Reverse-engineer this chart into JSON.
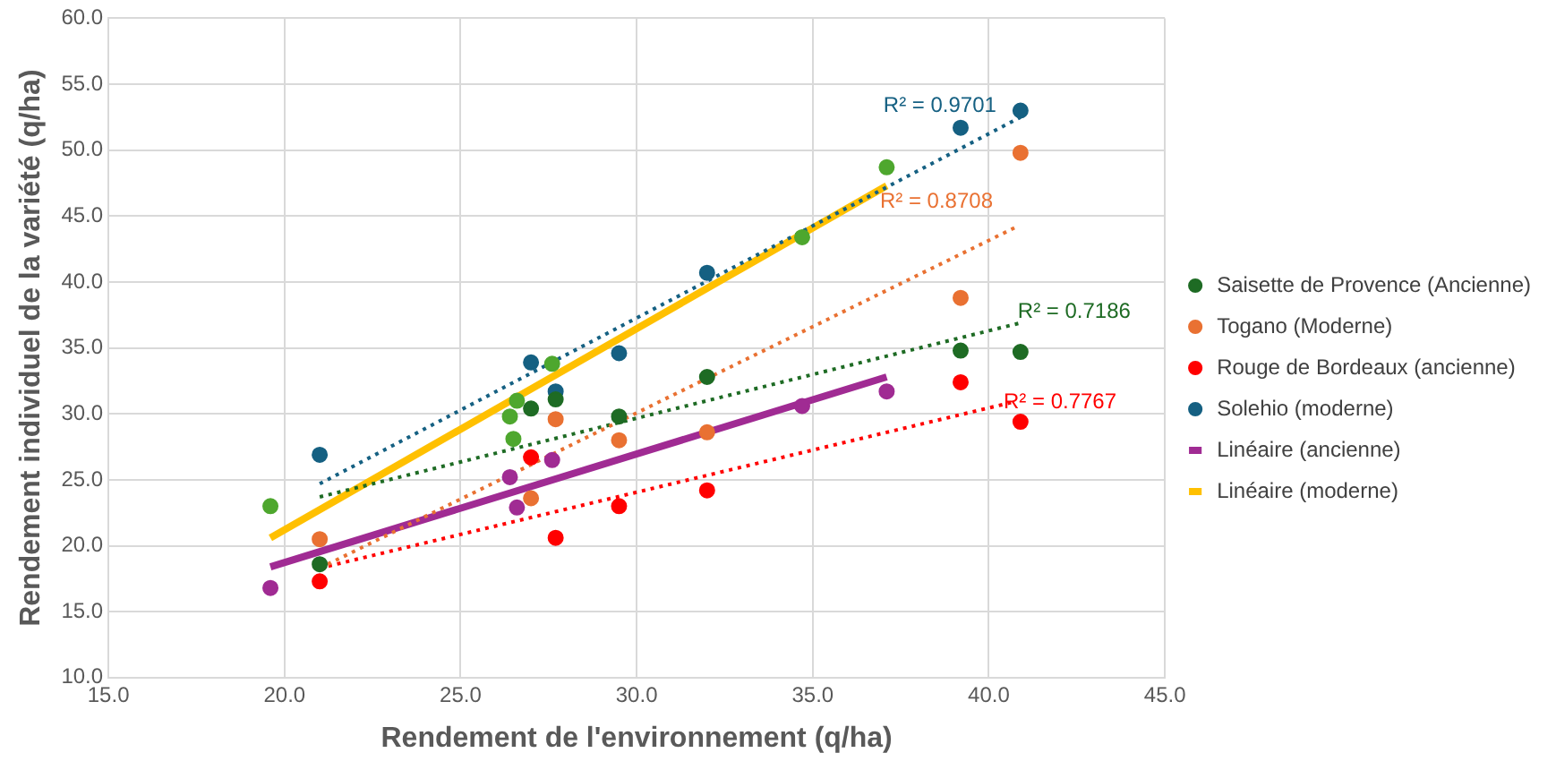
{
  "chart_data": {
    "type": "scatter",
    "xlabel": "Rendement de l'environnement (q/ha)",
    "ylabel": "Rendement individuel de la variété (q/ha)",
    "xlim": [
      15,
      45
    ],
    "ylim": [
      10,
      60
    ],
    "xticks": [
      {
        "value": 15,
        "label": "15.0"
      },
      {
        "value": 20,
        "label": "20.0"
      },
      {
        "value": 25,
        "label": "25.0"
      },
      {
        "value": 30,
        "label": "30.0"
      },
      {
        "value": 35,
        "label": "35.0"
      },
      {
        "value": 40,
        "label": "40.0"
      },
      {
        "value": 45,
        "label": "45.0"
      }
    ],
    "yticks": [
      {
        "value": 10,
        "label": "10.0"
      },
      {
        "value": 15,
        "label": "15.0"
      },
      {
        "value": 20,
        "label": "20.0"
      },
      {
        "value": 25,
        "label": "25.0"
      },
      {
        "value": 30,
        "label": "30.0"
      },
      {
        "value": 35,
        "label": "35.0"
      },
      {
        "value": 40,
        "label": "40.0"
      },
      {
        "value": 45,
        "label": "45.0"
      },
      {
        "value": 50,
        "label": "50.0"
      },
      {
        "value": 55,
        "label": "55.0"
      },
      {
        "value": 60,
        "label": "60.0"
      }
    ],
    "grid": true,
    "legend": "right",
    "marker": "circle",
    "series": [
      {
        "type": "line",
        "line_style": "dotted",
        "marker": "none",
        "color": "#156082",
        "x": [
          21.0,
          40.9
        ],
        "values": [
          24.7,
          52.5
        ]
      },
      {
        "type": "line",
        "line_style": "dotted",
        "marker": "none",
        "color": "#e97132",
        "x": [
          21.0,
          40.8
        ],
        "values": [
          18.3,
          44.2
        ]
      },
      {
        "type": "line",
        "line_style": "dotted",
        "marker": "none",
        "color": "#1e6b24",
        "x": [
          21.0,
          40.9
        ],
        "values": [
          23.7,
          36.9
        ]
      },
      {
        "type": "line",
        "line_style": "dotted",
        "marker": "none",
        "color": "#ff0000",
        "x": [
          21.0,
          40.7
        ],
        "values": [
          18.3,
          30.9
        ]
      },
      {
        "type": "line",
        "line_style": "solid",
        "marker": "none",
        "name": "Linéaire (ancienne)",
        "color": "#a02b93",
        "x": [
          19.6,
          37.1
        ],
        "values": [
          18.4,
          32.8
        ]
      },
      {
        "type": "line",
        "line_style": "solid",
        "marker": "none",
        "name": "Linéaire (moderne)",
        "color": "#ffc000",
        "x": [
          19.6,
          37.1
        ],
        "values": [
          20.6,
          47.3
        ]
      },
      {
        "name": "Saisette de Provence (Ancienne)",
        "color": "#1e6b24",
        "x": [
          21.0,
          27.0,
          27.7,
          29.5,
          32.0,
          39.2,
          40.9
        ],
        "values": [
          18.6,
          30.4,
          31.1,
          29.8,
          32.8,
          34.8,
          34.7
        ]
      },
      {
        "name": "Togano (Moderne)",
        "color": "#e97132",
        "x": [
          21.0,
          27.0,
          27.7,
          29.5,
          32.0,
          39.2,
          40.9
        ],
        "values": [
          20.5,
          23.6,
          29.6,
          28.0,
          28.6,
          38.8,
          49.8
        ]
      },
      {
        "name": "Rouge de Bordeaux (ancienne)",
        "color": "#ff0000",
        "x": [
          21.0,
          27.0,
          27.7,
          29.5,
          32.0,
          39.2,
          40.9
        ],
        "values": [
          17.3,
          26.7,
          20.6,
          23.0,
          24.2,
          32.4,
          29.4
        ]
      },
      {
        "name": "Solehio (moderne)",
        "color": "#156082",
        "x": [
          21.0,
          27.0,
          27.7,
          29.5,
          32.0,
          39.2,
          40.9
        ],
        "values": [
          26.9,
          33.9,
          31.7,
          34.6,
          40.7,
          51.7,
          53.0
        ]
      },
      {
        "color": "#4ea72e",
        "x": [
          19.6,
          26.4,
          26.5,
          26.6,
          27.6,
          34.7,
          37.1
        ],
        "values": [
          23.0,
          29.8,
          28.1,
          31.0,
          33.8,
          43.4,
          48.7
        ]
      },
      {
        "color": "#a02b93",
        "x": [
          19.6,
          26.4,
          26.6,
          27.6,
          34.7,
          37.1
        ],
        "values": [
          16.8,
          25.2,
          22.9,
          26.5,
          30.6,
          31.7
        ]
      }
    ],
    "annotations": [
      "R² = 0.9701",
      "R² = 0.8708",
      "R² = 0.7186",
      "R² = 0.7767"
    ]
  }
}
